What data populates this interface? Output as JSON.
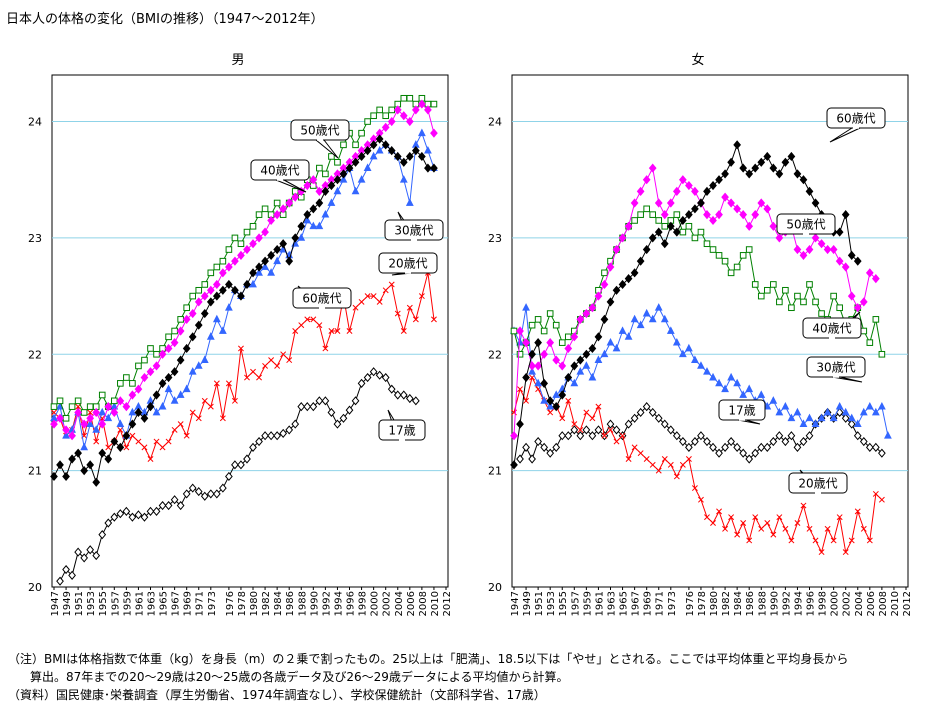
{
  "title": "日本人の体格の変化（BMIの推移）（1947～2012年）",
  "notes": {
    "line1": "（注）BMIは体格指数で体重（kg）を身長（m）の２乗で割ったもの。25以上は「肥満」、18.5以下は「やせ」とされる。ここでは平均体重と平均身長から",
    "line2": "算出。87年までの20～29歳は20～25歳の各歳データ及び26～29歳データによる平均値から計算。",
    "line3": "（資料）国民健康･栄養調査（厚生労働省、1974年調査なし）、学校保健統計（文部科学省、17歳）"
  },
  "chart_data": [
    {
      "type": "line",
      "title": "男",
      "x_ticks": [
        "1947",
        "1949",
        "1951",
        "1953",
        "1955",
        "1957",
        "1959",
        "1961",
        "1963",
        "1965",
        "1967",
        "1969",
        "1971",
        "1973",
        "1976",
        "1978",
        "1980",
        "1982",
        "1984",
        "1986",
        "1988",
        "1990",
        "1992",
        "1994",
        "1996",
        "1998",
        "2000",
        "2002",
        "2004",
        "2006",
        "2008",
        "2010",
        "2012"
      ],
      "ylim": [
        20,
        24.4
      ],
      "y_ticks": [
        20,
        21,
        22,
        23,
        24
      ],
      "grid": "horizontal",
      "series": [
        {
          "name": "17歳",
          "color": "#000000",
          "marker": "diamond-open",
          "x_start": 1948,
          "values": [
            20.05,
            20.15,
            20.1,
            20.3,
            20.25,
            20.32,
            20.27,
            20.45,
            20.55,
            20.6,
            20.63,
            20.65,
            20.6,
            20.62,
            20.6,
            20.65,
            20.65,
            20.7,
            20.7,
            20.75,
            20.7,
            20.8,
            20.85,
            20.82,
            20.78,
            20.8,
            20.8,
            20.85,
            20.95,
            21.05,
            21.05,
            21.1,
            21.2,
            21.25,
            21.3,
            21.3,
            21.3,
            21.32,
            21.35,
            21.4,
            21.55,
            21.55,
            21.55,
            21.6,
            21.6,
            21.5,
            21.4,
            21.45,
            21.52,
            21.6,
            21.75,
            21.8,
            21.85,
            21.82,
            21.8,
            21.7,
            21.65,
            21.65,
            21.62,
            21.6
          ]
        },
        {
          "name": "20歳代",
          "color": "#ff0000",
          "marker": "x",
          "x_start": 1947,
          "values": [
            21.5,
            21.45,
            21.3,
            21.35,
            21.55,
            21.3,
            21.5,
            21.25,
            21.45,
            21.2,
            21.25,
            21.35,
            21.2,
            21.3,
            21.25,
            21.2,
            21.1,
            21.25,
            21.2,
            21.25,
            21.35,
            21.4,
            21.3,
            21.5,
            21.45,
            21.6,
            21.55,
            21.75,
            21.45,
            21.75,
            21.6,
            22.05,
            21.8,
            21.85,
            21.8,
            21.9,
            21.95,
            21.9,
            22.0,
            21.95,
            22.2,
            22.25,
            22.3,
            22.3,
            22.25,
            22.05,
            22.2,
            22.2,
            22.5,
            22.2,
            22.4,
            22.45,
            22.5,
            22.5,
            22.45,
            22.55,
            22.6,
            22.35,
            22.2,
            22.4,
            22.3,
            22.5,
            22.7,
            22.3
          ]
        },
        {
          "name": "30歳代",
          "color": "#3366ff",
          "marker": "triangle",
          "x_start": 1947,
          "values": [
            21.45,
            21.55,
            21.3,
            21.35,
            21.5,
            21.2,
            21.4,
            21.35,
            21.5,
            21.45,
            21.55,
            21.4,
            21.3,
            21.5,
            21.55,
            21.5,
            21.6,
            21.5,
            21.55,
            21.7,
            21.6,
            21.65,
            21.7,
            21.85,
            21.9,
            21.95,
            22.15,
            22.3,
            22.2,
            22.4,
            22.55,
            22.5,
            22.6,
            22.6,
            22.7,
            22.75,
            22.7,
            22.8,
            22.9,
            22.85,
            22.95,
            23.0,
            23.15,
            23.1,
            23.1,
            23.2,
            23.3,
            23.4,
            23.5,
            23.6,
            23.4,
            23.5,
            23.6,
            23.7,
            23.75,
            23.8,
            23.75,
            23.7,
            23.5,
            23.3,
            23.8,
            23.9,
            23.75,
            23.6
          ]
        },
        {
          "name": "40歳代",
          "color": "#008000",
          "marker": "square-open",
          "x_start": 1947,
          "values": [
            21.55,
            21.6,
            21.45,
            21.55,
            21.6,
            21.5,
            21.55,
            21.55,
            21.65,
            21.55,
            21.6,
            21.75,
            21.8,
            21.75,
            21.9,
            21.95,
            22.05,
            22.0,
            22.05,
            22.15,
            22.2,
            22.3,
            22.4,
            22.5,
            22.55,
            22.6,
            22.7,
            22.75,
            22.8,
            22.9,
            23.0,
            22.95,
            23.05,
            23.1,
            23.2,
            23.25,
            23.2,
            23.3,
            23.2,
            23.3,
            23.4,
            23.35,
            23.5,
            23.45,
            23.6,
            23.55,
            23.7,
            23.65,
            23.8,
            23.9,
            23.8,
            23.9,
            24.0,
            24.05,
            24.1,
            24.05,
            24.1,
            24.15,
            24.2,
            24.2,
            24.15,
            24.2,
            24.15,
            24.15
          ]
        },
        {
          "name": "50歳代",
          "color": "#ff00ff",
          "marker": "diamond",
          "x_start": 1947,
          "values": [
            21.4,
            21.45,
            21.35,
            21.3,
            21.5,
            21.4,
            21.45,
            21.5,
            21.4,
            21.55,
            21.5,
            21.6,
            21.55,
            21.65,
            21.7,
            21.8,
            21.85,
            21.9,
            22.0,
            22.05,
            22.1,
            22.2,
            22.3,
            22.35,
            22.45,
            22.5,
            22.55,
            22.6,
            22.7,
            22.75,
            22.8,
            22.85,
            22.9,
            22.95,
            23.0,
            23.05,
            23.15,
            23.2,
            23.25,
            23.3,
            23.35,
            23.4,
            23.45,
            23.5,
            23.4,
            23.45,
            23.5,
            23.55,
            23.6,
            23.65,
            23.7,
            23.75,
            23.8,
            23.85,
            23.9,
            23.95,
            24.0,
            24.1,
            24.05,
            24.0,
            24.1,
            24.15,
            24.1,
            23.9
          ]
        },
        {
          "name": "60歳代",
          "color": "#000000",
          "marker": "diamond",
          "x_start": 1947,
          "values": [
            20.95,
            21.05,
            20.95,
            21.1,
            21.15,
            21.0,
            21.05,
            20.9,
            21.15,
            21.1,
            21.25,
            21.2,
            21.3,
            21.4,
            21.5,
            21.45,
            21.55,
            21.65,
            21.75,
            21.8,
            21.85,
            21.95,
            22.05,
            22.15,
            22.25,
            22.35,
            22.45,
            22.5,
            22.55,
            22.6,
            22.55,
            22.5,
            22.6,
            22.7,
            22.75,
            22.8,
            22.85,
            22.9,
            22.95,
            22.8,
            23.0,
            23.1,
            23.2,
            23.25,
            23.3,
            23.4,
            23.45,
            23.5,
            23.55,
            23.6,
            23.65,
            23.7,
            23.75,
            23.8,
            23.85,
            23.8,
            23.75,
            23.7,
            23.65,
            23.7,
            23.75,
            23.7,
            23.6,
            23.6
          ]
        }
      ],
      "annotations": [
        {
          "text": "50歳代",
          "series": "50歳代"
        },
        {
          "text": "40歳代",
          "series": "40歳代"
        },
        {
          "text": "30歳代",
          "series": "30歳代"
        },
        {
          "text": "20歳代",
          "series": "20歳代"
        },
        {
          "text": "60歳代",
          "series": "60歳代"
        },
        {
          "text": "17歳",
          "series": "17歳"
        }
      ]
    },
    {
      "type": "line",
      "title": "女",
      "x_ticks": [
        "1947",
        "1949",
        "1951",
        "1953",
        "1955",
        "1957",
        "1959",
        "1961",
        "1963",
        "1965",
        "1967",
        "1969",
        "1971",
        "1973",
        "1976",
        "1978",
        "1980",
        "1982",
        "1984",
        "1986",
        "1988",
        "1990",
        "1992",
        "1994",
        "1996",
        "1998",
        "2000",
        "2002",
        "2004",
        "2006",
        "2008",
        "2010",
        "2012"
      ],
      "ylim": [
        20,
        24.4
      ],
      "y_ticks": [
        20,
        21,
        22,
        23,
        24
      ],
      "grid": "horizontal",
      "series": [
        {
          "name": "17歳",
          "color": "#000000",
          "marker": "diamond-open",
          "x_start": 1948,
          "values": [
            21.1,
            21.2,
            21.1,
            21.25,
            21.2,
            21.15,
            21.2,
            21.3,
            21.3,
            21.35,
            21.3,
            21.35,
            21.3,
            21.35,
            21.3,
            21.4,
            21.35,
            21.3,
            21.4,
            21.45,
            21.5,
            21.55,
            21.5,
            21.45,
            21.4,
            21.35,
            21.3,
            21.25,
            21.2,
            21.25,
            21.3,
            21.25,
            21.2,
            21.15,
            21.2,
            21.25,
            21.2,
            21.15,
            21.1,
            21.15,
            21.2,
            21.2,
            21.25,
            21.3,
            21.25,
            21.3,
            21.2,
            21.25,
            21.3,
            21.4,
            21.45,
            21.5,
            21.45,
            21.5,
            21.45,
            21.4,
            21.3,
            21.25,
            21.2,
            21.2,
            21.15
          ]
        },
        {
          "name": "20歳代",
          "color": "#ff0000",
          "marker": "x",
          "x_start": 1947,
          "values": [
            21.5,
            21.7,
            21.6,
            21.8,
            21.7,
            21.6,
            21.5,
            21.55,
            21.45,
            21.6,
            21.4,
            21.35,
            21.5,
            21.45,
            21.55,
            21.3,
            21.35,
            21.25,
            21.3,
            21.1,
            21.2,
            21.15,
            21.1,
            21.05,
            21.0,
            21.1,
            21.05,
            20.95,
            21.05,
            21.1,
            20.85,
            20.75,
            20.6,
            20.55,
            20.65,
            20.5,
            20.6,
            20.45,
            20.55,
            20.4,
            20.6,
            20.5,
            20.55,
            20.45,
            20.6,
            20.5,
            20.4,
            20.55,
            20.7,
            20.5,
            20.4,
            20.3,
            20.5,
            20.4,
            20.6,
            20.3,
            20.4,
            20.65,
            20.5,
            20.4,
            20.8,
            20.75
          ]
        },
        {
          "name": "30歳代",
          "color": "#3366ff",
          "marker": "triangle",
          "x_start": 1947,
          "values": [
            22.2,
            22.1,
            22.4,
            21.85,
            21.75,
            21.6,
            21.55,
            21.65,
            21.7,
            21.8,
            21.75,
            21.85,
            21.9,
            21.8,
            21.95,
            22.0,
            22.1,
            22.05,
            22.2,
            22.15,
            22.3,
            22.25,
            22.35,
            22.3,
            22.4,
            22.3,
            22.2,
            22.1,
            22.0,
            22.05,
            21.95,
            21.9,
            21.85,
            21.8,
            21.75,
            21.7,
            21.8,
            21.75,
            21.65,
            21.7,
            21.6,
            21.65,
            21.55,
            21.6,
            21.5,
            21.55,
            21.45,
            21.5,
            21.4,
            21.45,
            21.4,
            21.45,
            21.5,
            21.45,
            21.55,
            21.5,
            21.45,
            21.4,
            21.5,
            21.55,
            21.5,
            21.55,
            21.3
          ]
        },
        {
          "name": "40歳代",
          "color": "#008000",
          "marker": "square-open",
          "x_start": 1947,
          "values": [
            22.2,
            22.0,
            22.1,
            22.25,
            22.3,
            22.2,
            22.35,
            22.25,
            22.1,
            22.15,
            22.2,
            22.3,
            22.35,
            22.4,
            22.55,
            22.7,
            22.8,
            22.9,
            23.0,
            23.1,
            23.15,
            23.2,
            23.25,
            23.2,
            23.15,
            23.1,
            23.15,
            23.2,
            23.05,
            23.1,
            23.0,
            23.05,
            22.95,
            22.9,
            22.85,
            22.8,
            22.7,
            22.75,
            22.85,
            22.9,
            22.6,
            22.5,
            22.55,
            22.6,
            22.45,
            22.55,
            22.4,
            22.5,
            22.45,
            22.6,
            22.45,
            22.35,
            22.3,
            22.5,
            22.4,
            22.25,
            22.3,
            22.4,
            22.2,
            22.1,
            22.3,
            22.0
          ]
        },
        {
          "name": "50歳代",
          "color": "#ff00ff",
          "marker": "diamond",
          "x_start": 1947,
          "values": [
            21.3,
            22.2,
            22.1,
            21.9,
            21.9,
            22.0,
            22.1,
            21.95,
            21.9,
            22.05,
            22.15,
            22.3,
            22.35,
            22.4,
            22.5,
            22.6,
            22.75,
            22.9,
            23.0,
            23.1,
            23.3,
            23.4,
            23.5,
            23.6,
            23.3,
            23.2,
            23.3,
            23.4,
            23.5,
            23.45,
            23.4,
            23.3,
            23.2,
            23.15,
            23.2,
            23.35,
            23.3,
            23.25,
            23.2,
            23.1,
            23.2,
            23.3,
            23.25,
            23.1,
            23.0,
            23.05,
            23.1,
            22.9,
            22.85,
            22.9,
            23.0,
            22.95,
            22.9,
            22.9,
            22.8,
            22.75,
            22.5,
            22.4,
            22.45,
            22.7,
            22.65
          ]
        },
        {
          "name": "60歳代",
          "color": "#000000",
          "marker": "diamond",
          "x_start": 1947,
          "values": [
            21.05,
            21.4,
            21.8,
            22.0,
            22.1,
            21.75,
            21.6,
            21.55,
            21.65,
            21.8,
            21.9,
            21.95,
            22.0,
            22.05,
            22.15,
            22.3,
            22.45,
            22.55,
            22.6,
            22.65,
            22.7,
            22.8,
            22.9,
            23.0,
            23.05,
            22.95,
            23.1,
            23.05,
            23.15,
            23.2,
            23.25,
            23.3,
            23.4,
            23.45,
            23.5,
            23.55,
            23.65,
            23.8,
            23.6,
            23.55,
            23.6,
            23.65,
            23.7,
            23.6,
            23.55,
            23.65,
            23.7,
            23.55,
            23.5,
            23.4,
            23.3,
            23.2,
            23.1,
            23.05,
            23.05,
            23.2,
            22.85,
            22.8
          ]
        }
      ],
      "annotations": [
        {
          "text": "60歳代",
          "series": "60歳代"
        },
        {
          "text": "50歳代",
          "series": "50歳代"
        },
        {
          "text": "40歳代",
          "series": "40歳代"
        },
        {
          "text": "30歳代",
          "series": "30歳代"
        },
        {
          "text": "17歳",
          "series": "17歳"
        },
        {
          "text": "20歳代",
          "series": "20歳代"
        }
      ]
    }
  ]
}
